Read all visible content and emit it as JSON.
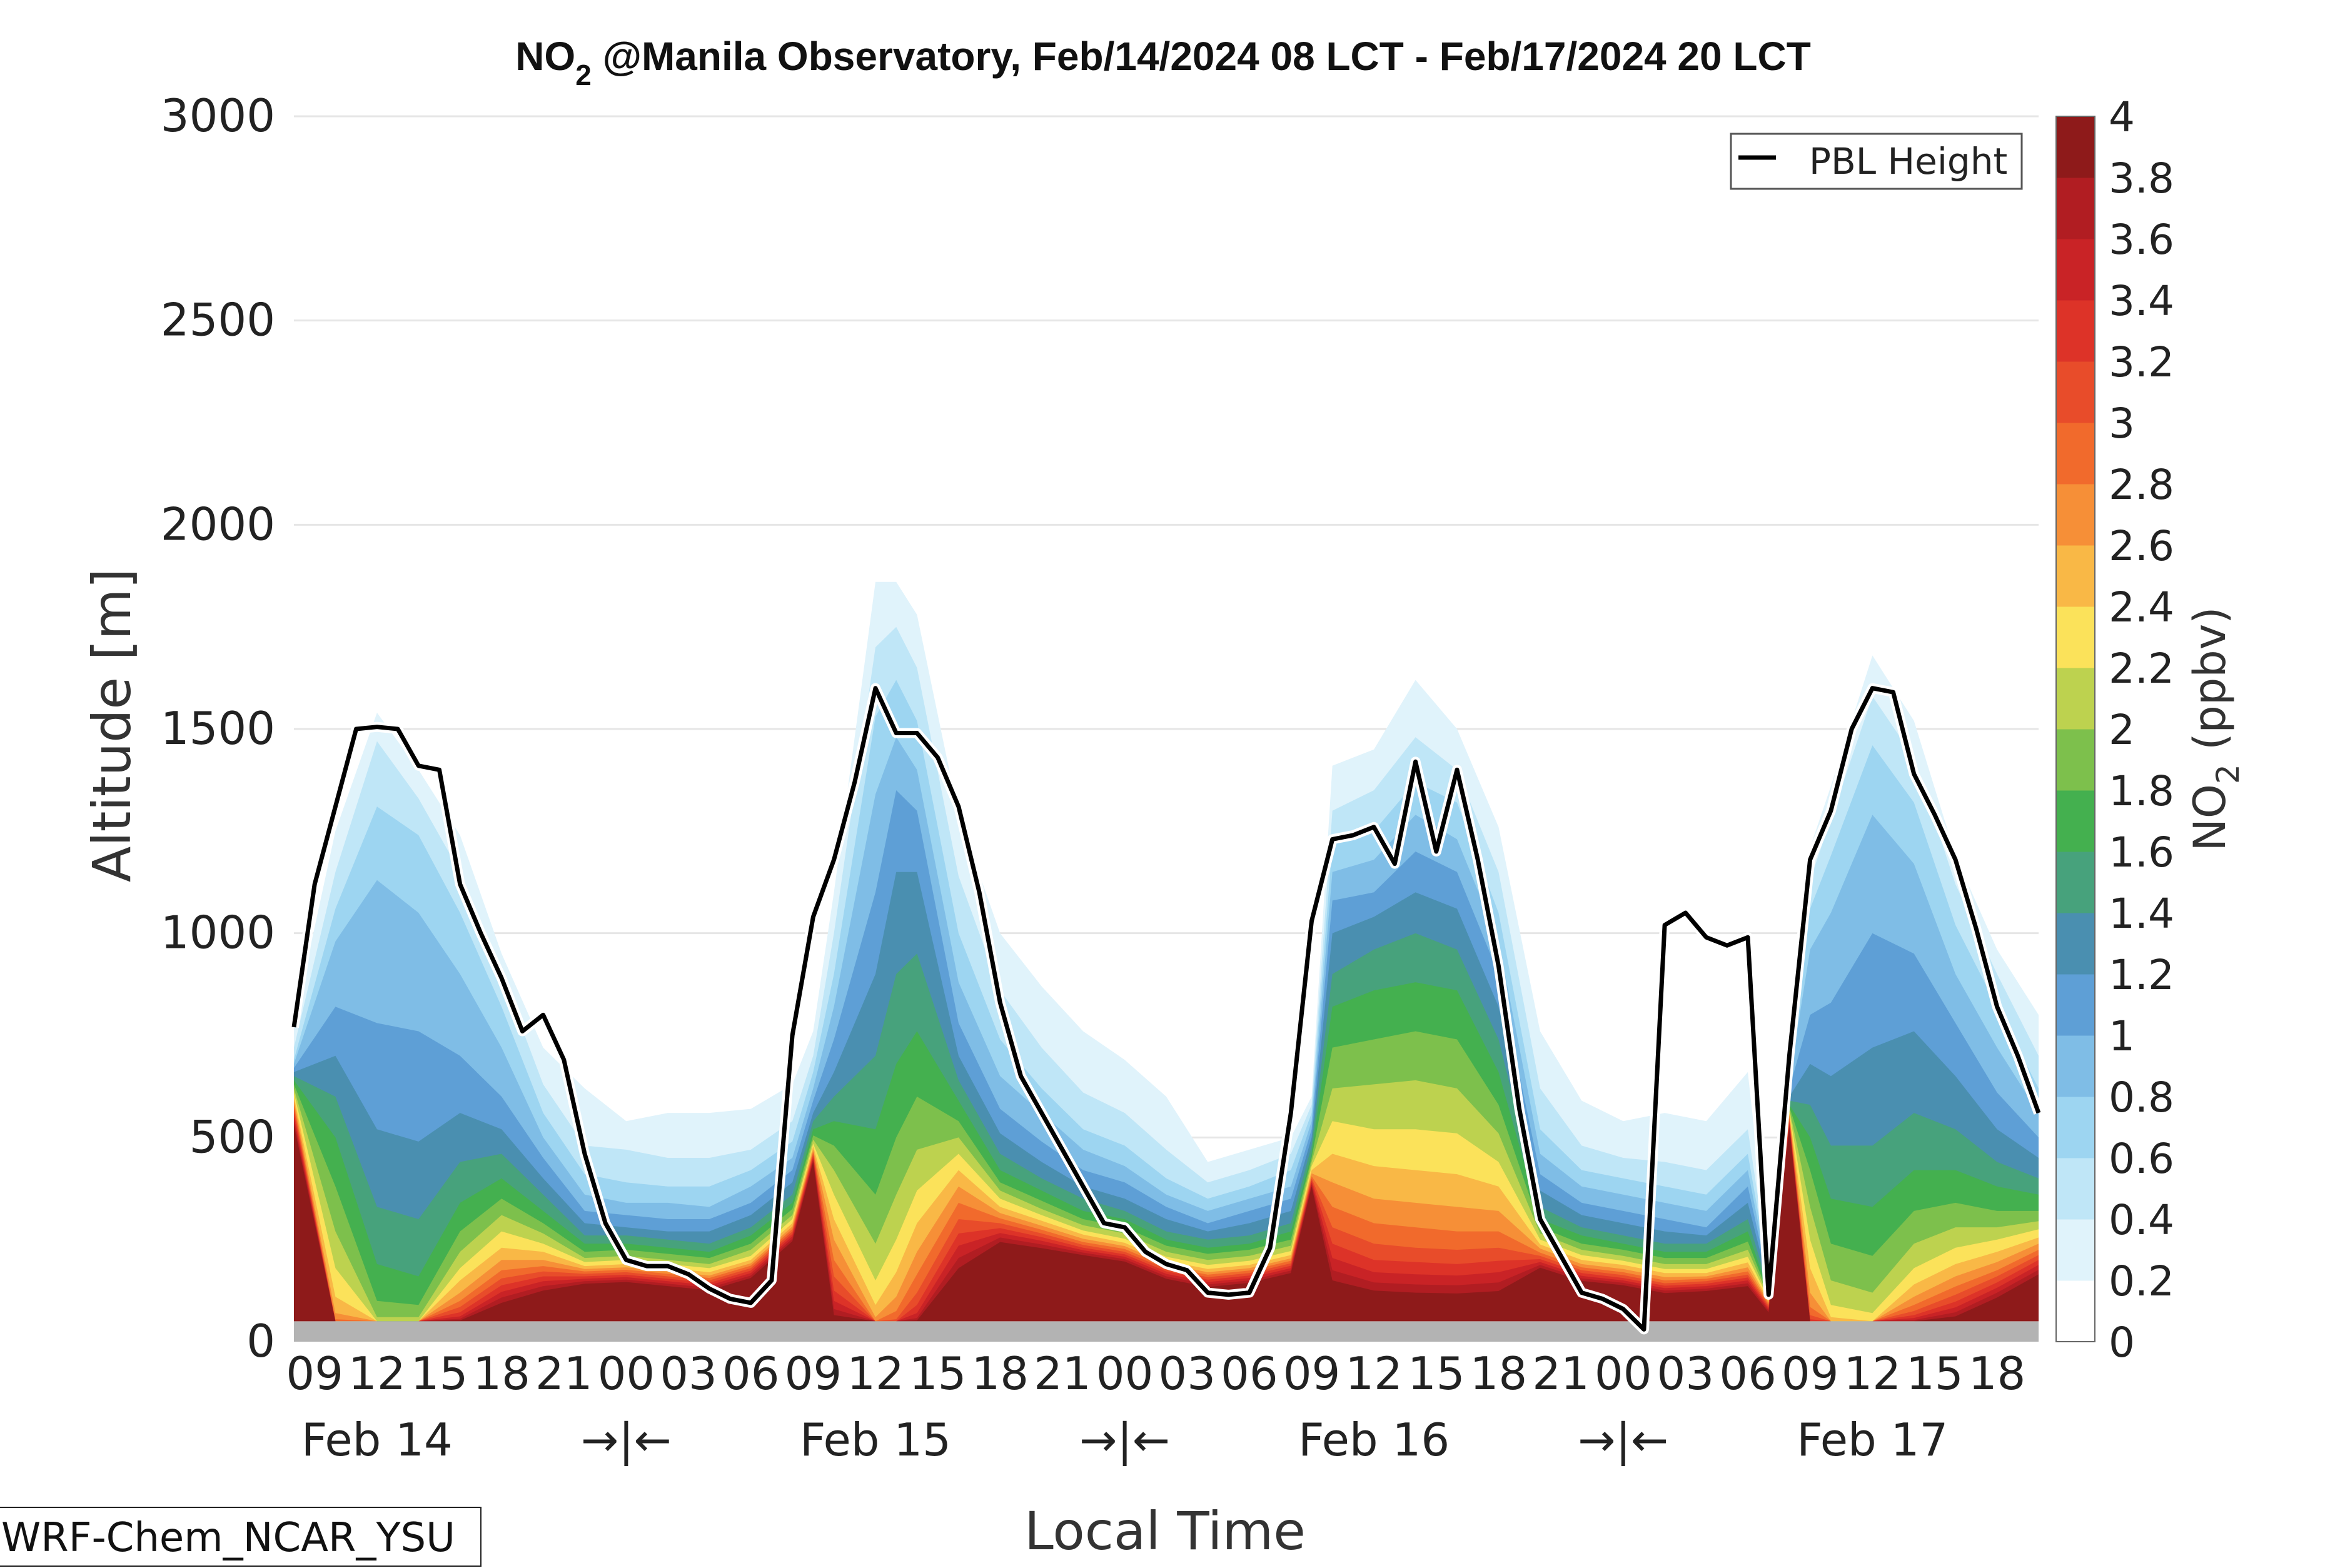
{
  "chart_data": {
    "type": "heatmap",
    "title": {
      "species": "NO",
      "subscript": "2",
      "rest": " @Manila Observatory, Feb/14/2024 08 LCT - Feb/17/2024 20 LCT"
    },
    "xlabel": "Local Time",
    "ylabel": "Altitude [m]",
    "ylim": [
      0,
      3000
    ],
    "y_ticks": [
      "0",
      "500",
      "1000",
      "1500",
      "2000",
      "2500",
      "3000"
    ],
    "x_range_hours": [
      8,
      92
    ],
    "x_tick_labels": [
      {
        "h": 9,
        "label": "09"
      },
      {
        "h": 12,
        "label": "12"
      },
      {
        "h": 15,
        "label": "15"
      },
      {
        "h": 18,
        "label": "18"
      },
      {
        "h": 21,
        "label": "21"
      },
      {
        "h": 24,
        "label": "00"
      },
      {
        "h": 27,
        "label": "03"
      },
      {
        "h": 30,
        "label": "06"
      },
      {
        "h": 33,
        "label": "09"
      },
      {
        "h": 36,
        "label": "12"
      },
      {
        "h": 39,
        "label": "15"
      },
      {
        "h": 42,
        "label": "18"
      },
      {
        "h": 45,
        "label": "21"
      },
      {
        "h": 48,
        "label": "00"
      },
      {
        "h": 51,
        "label": "03"
      },
      {
        "h": 54,
        "label": "06"
      },
      {
        "h": 57,
        "label": "09"
      },
      {
        "h": 60,
        "label": "12"
      },
      {
        "h": 63,
        "label": "15"
      },
      {
        "h": 66,
        "label": "18"
      },
      {
        "h": 69,
        "label": "21"
      },
      {
        "h": 72,
        "label": "00"
      },
      {
        "h": 75,
        "label": "03"
      },
      {
        "h": 78,
        "label": "06"
      },
      {
        "h": 81,
        "label": "09"
      },
      {
        "h": 84,
        "label": "12"
      },
      {
        "h": 87,
        "label": "15"
      },
      {
        "h": 90,
        "label": "18"
      }
    ],
    "day_labels": [
      {
        "h": 12,
        "label": "Feb 14"
      },
      {
        "h": 24,
        "label": "→|←"
      },
      {
        "h": 36,
        "label": "Feb 15"
      },
      {
        "h": 48,
        "label": "→|←"
      },
      {
        "h": 60,
        "label": "Feb 16"
      },
      {
        "h": 72,
        "label": "→|←"
      },
      {
        "h": 84,
        "label": "Feb 17"
      }
    ],
    "colorbar": {
      "label": {
        "species": "NO",
        "subscript": "2",
        "rest": " (ppbv)"
      },
      "levels": [
        0,
        0.2,
        0.4,
        0.6,
        0.8,
        1.0,
        1.2,
        1.4,
        1.6,
        1.8,
        2.0,
        2.2,
        2.4,
        2.6,
        2.8,
        3.0,
        3.2,
        3.4,
        3.6,
        3.8,
        4.0
      ],
      "tick_labels": [
        "0",
        "0.2",
        "0.4",
        "0.6",
        "0.8",
        "1",
        "1.2",
        "1.4",
        "1.6",
        "1.8",
        "2",
        "2.2",
        "2.4",
        "2.6",
        "2.8",
        "3",
        "3.2",
        "3.4",
        "3.6",
        "3.8",
        "4"
      ],
      "colors": [
        "#ffffff",
        "#e0f3fb",
        "#bfe6f7",
        "#9dd5f1",
        "#7fbde6",
        "#5e9fd6",
        "#4a8fb0",
        "#47a27c",
        "#44b04f",
        "#7dc04c",
        "#bdd24f",
        "#fbe25a",
        "#f9b846",
        "#f68f37",
        "#f16a2c",
        "#e84c2a",
        "#dd3328",
        "#c92326",
        "#b11d22",
        "#8e1a1a"
      ]
    },
    "legend": {
      "label": "PBL Height",
      "placement": "top-right"
    },
    "ground_level_m": 50,
    "pbl_height": {
      "hours": [
        8,
        9,
        10,
        11,
        12,
        13,
        14,
        15,
        16,
        17,
        18,
        19,
        20,
        21,
        22,
        23,
        24,
        25,
        26,
        27,
        28,
        29,
        30,
        31,
        32,
        33,
        34,
        35,
        36,
        37,
        38,
        39,
        40,
        41,
        42,
        43,
        44,
        45,
        46,
        47,
        48,
        49,
        50,
        51,
        52,
        53,
        54,
        55,
        56,
        57,
        58,
        59,
        60,
        61,
        62,
        63,
        64,
        65,
        66,
        67,
        68,
        69,
        70,
        71,
        72,
        73,
        74,
        75,
        76,
        77,
        78,
        79,
        80,
        81,
        82,
        83,
        84,
        85,
        86,
        87,
        88,
        89,
        90,
        91,
        92
      ],
      "values": [
        770,
        1120,
        1310,
        1500,
        1505,
        1500,
        1410,
        1400,
        1120,
        1000,
        890,
        760,
        800,
        690,
        460,
        290,
        200,
        185,
        185,
        165,
        130,
        105,
        95,
        150,
        750,
        1040,
        1180,
        1370,
        1600,
        1490,
        1490,
        1430,
        1310,
        1100,
        830,
        650,
        560,
        470,
        380,
        290,
        280,
        220,
        190,
        175,
        120,
        115,
        120,
        230,
        560,
        1030,
        1230,
        1240,
        1260,
        1170,
        1420,
        1200,
        1400,
        1180,
        920,
        570,
        300,
        210,
        120,
        105,
        80,
        30,
        1020,
        1050,
        990,
        970,
        990,
        115,
        700,
        1180,
        1300,
        1500,
        1600,
        1590,
        1390,
        1290,
        1180,
        1010,
        820,
        700,
        560
      ]
    },
    "contour_envelopes_m": {
      "hours": [
        8,
        10,
        12,
        14,
        16,
        18,
        20,
        22,
        24,
        26,
        28,
        30,
        32,
        33,
        34,
        36,
        37,
        38,
        40,
        42,
        44,
        46,
        48,
        50,
        52,
        54,
        56,
        57,
        58,
        60,
        62,
        64,
        66,
        68,
        70,
        72,
        74,
        76,
        78,
        79,
        80,
        81,
        82,
        84,
        86,
        88,
        90,
        92
      ],
      "lev_0_2": [
        780,
        1250,
        1540,
        1400,
        1240,
        950,
        720,
        620,
        540,
        560,
        560,
        570,
        630,
        760,
        1100,
        1860,
        1860,
        1780,
        1290,
        1000,
        870,
        760,
        690,
        600,
        440,
        470,
        500,
        600,
        1410,
        1450,
        1620,
        1500,
        1260,
        760,
        590,
        540,
        560,
        540,
        660,
        200,
        760,
        1210,
        1360,
        1680,
        1520,
        1190,
        960,
        800
      ],
      "lev_0_4": [
        720,
        1150,
        1470,
        1330,
        1150,
        900,
        630,
        480,
        470,
        450,
        450,
        470,
        540,
        700,
        1000,
        1700,
        1750,
        1650,
        1140,
        860,
        720,
        610,
        560,
        470,
        390,
        420,
        460,
        580,
        1300,
        1350,
        1480,
        1400,
        1150,
        620,
        480,
        450,
        440,
        420,
        520,
        180,
        700,
        1130,
        1280,
        1580,
        1430,
        1120,
        900,
        700
      ],
      "lev_0_6": [
        690,
        1060,
        1310,
        1240,
        1050,
        820,
        560,
        410,
        390,
        380,
        380,
        420,
        490,
        660,
        900,
        1530,
        1620,
        1520,
        1000,
        740,
        620,
        520,
        480,
        400,
        350,
        380,
        420,
        560,
        1220,
        1250,
        1370,
        1320,
        1050,
        520,
        420,
        400,
        380,
        360,
        460,
        170,
        660,
        1060,
        1190,
        1460,
        1320,
        1020,
        820,
        620
      ],
      "lev_0_8": [
        680,
        980,
        1130,
        1050,
        900,
        720,
        500,
        360,
        340,
        340,
        330,
        380,
        450,
        620,
        820,
        1340,
        1480,
        1400,
        880,
        650,
        560,
        470,
        430,
        360,
        320,
        350,
        380,
        540,
        1150,
        1180,
        1290,
        1230,
        980,
        460,
        380,
        360,
        340,
        320,
        420,
        160,
        640,
        960,
        1050,
        1290,
        1170,
        900,
        720,
        560
      ],
      "lev_1_0": [
        670,
        820,
        780,
        760,
        700,
        600,
        450,
        320,
        310,
        300,
        300,
        340,
        420,
        590,
        740,
        1100,
        1350,
        1300,
        780,
        570,
        490,
        420,
        390,
        330,
        290,
        320,
        350,
        520,
        1080,
        1100,
        1200,
        1150,
        900,
        410,
        340,
        320,
        300,
        280,
        380,
        150,
        620,
        800,
        830,
        1000,
        950,
        780,
        610,
        500
      ],
      "lev_1_2": [
        660,
        700,
        520,
        490,
        560,
        520,
        400,
        290,
        280,
        270,
        270,
        310,
        390,
        560,
        660,
        900,
        1150,
        1150,
        700,
        510,
        440,
        380,
        350,
        300,
        270,
        290,
        320,
        500,
        1000,
        1040,
        1100,
        1060,
        820,
        370,
        310,
        290,
        270,
        260,
        340,
        140,
        600,
        680,
        650,
        720,
        760,
        650,
        520,
        450
      ],
      "lev_1_4": [
        650,
        600,
        330,
        300,
        440,
        460,
        360,
        260,
        260,
        250,
        240,
        280,
        360,
        540,
        600,
        700,
        900,
        950,
        640,
        460,
        400,
        350,
        320,
        270,
        250,
        260,
        290,
        480,
        900,
        960,
        1000,
        960,
        740,
        330,
        280,
        260,
        240,
        240,
        300,
        130,
        590,
        580,
        480,
        480,
        560,
        520,
        440,
        400
      ],
      "lev_1_6": [
        640,
        500,
        190,
        160,
        340,
        400,
        320,
        240,
        240,
        230,
        220,
        260,
        340,
        520,
        540,
        520,
        680,
        760,
        590,
        420,
        370,
        320,
        300,
        250,
        230,
        240,
        270,
        460,
        820,
        860,
        880,
        860,
        660,
        300,
        260,
        240,
        220,
        220,
        270,
        120,
        580,
        500,
        350,
        330,
        420,
        420,
        380,
        360
      ],
      "lev_1_8": [
        630,
        380,
        100,
        90,
        270,
        350,
        290,
        220,
        225,
        215,
        205,
        240,
        325,
        505,
        480,
        360,
        500,
        600,
        540,
        390,
        345,
        300,
        280,
        235,
        215,
        225,
        250,
        450,
        720,
        740,
        760,
        740,
        580,
        280,
        240,
        225,
        205,
        205,
        245,
        115,
        575,
        420,
        240,
        210,
        320,
        340,
        320,
        320
      ],
      "lev_2_0": [
        620,
        270,
        60,
        60,
        220,
        310,
        265,
        205,
        210,
        200,
        190,
        225,
        310,
        495,
        420,
        240,
        360,
        470,
        500,
        370,
        325,
        285,
        265,
        220,
        200,
        210,
        235,
        440,
        620,
        630,
        640,
        620,
        510,
        265,
        225,
        210,
        190,
        190,
        225,
        110,
        570,
        330,
        150,
        120,
        240,
        280,
        280,
        295
      ],
      "lev_2_2": [
        610,
        180,
        50,
        50,
        180,
        270,
        240,
        195,
        200,
        190,
        180,
        210,
        300,
        485,
        360,
        150,
        250,
        370,
        460,
        350,
        310,
        272,
        252,
        208,
        188,
        198,
        222,
        430,
        540,
        520,
        520,
        510,
        440,
        250,
        212,
        198,
        178,
        178,
        208,
        105,
        565,
        250,
        90,
        70,
        180,
        230,
        250,
        275
      ],
      "lev_2_4": [
        600,
        110,
        50,
        50,
        150,
        230,
        220,
        185,
        190,
        180,
        170,
        200,
        290,
        478,
        300,
        90,
        170,
        290,
        420,
        330,
        296,
        262,
        242,
        198,
        178,
        188,
        212,
        420,
        460,
        430,
        420,
        410,
        380,
        238,
        200,
        188,
        168,
        168,
        194,
        100,
        560,
        180,
        60,
        50,
        140,
        190,
        220,
        255
      ],
      "lev_2_6": [
        590,
        70,
        50,
        50,
        120,
        200,
        200,
        178,
        182,
        172,
        162,
        192,
        282,
        470,
        250,
        60,
        110,
        220,
        380,
        315,
        284,
        252,
        234,
        190,
        170,
        180,
        204,
        412,
        390,
        350,
        340,
        330,
        320,
        228,
        190,
        178,
        158,
        160,
        182,
        96,
        555,
        120,
        50,
        50,
        110,
        160,
        195,
        240
      ],
      "lev_2_8": [
        580,
        55,
        50,
        50,
        100,
        175,
        185,
        172,
        176,
        166,
        156,
        186,
        276,
        465,
        200,
        50,
        75,
        165,
        340,
        302,
        274,
        244,
        227,
        184,
        164,
        174,
        198,
        405,
        330,
        290,
        280,
        270,
        270,
        218,
        182,
        170,
        150,
        154,
        172,
        92,
        550,
        85,
        50,
        50,
        90,
        135,
        175,
        225
      ],
      "lev_3_0": [
        570,
        50,
        50,
        50,
        85,
        155,
        172,
        166,
        170,
        160,
        150,
        180,
        270,
        460,
        160,
        50,
        55,
        120,
        300,
        290,
        265,
        237,
        220,
        178,
        158,
        168,
        192,
        400,
        280,
        240,
        230,
        225,
        230,
        210,
        175,
        163,
        143,
        148,
        164,
        88,
        545,
        65,
        50,
        50,
        75,
        115,
        160,
        212
      ],
      "lev_3_2": [
        560,
        50,
        50,
        50,
        72,
        138,
        160,
        160,
        164,
        154,
        144,
        174,
        264,
        455,
        125,
        50,
        50,
        90,
        265,
        278,
        256,
        230,
        214,
        172,
        152,
        162,
        186,
        395,
        240,
        200,
        195,
        190,
        198,
        202,
        168,
        156,
        137,
        142,
        157,
        84,
        540,
        55,
        50,
        50,
        65,
        98,
        145,
        200
      ],
      "lev_3_4": [
        550,
        50,
        50,
        50,
        62,
        122,
        148,
        154,
        158,
        148,
        138,
        168,
        258,
        450,
        100,
        50,
        50,
        70,
        235,
        266,
        247,
        224,
        208,
        166,
        146,
        156,
        180,
        390,
        205,
        170,
        165,
        162,
        170,
        195,
        161,
        150,
        131,
        136,
        150,
        80,
        535,
        50,
        50,
        50,
        58,
        84,
        132,
        188
      ],
      "lev_3_6": [
        540,
        50,
        50,
        50,
        56,
        108,
        136,
        148,
        152,
        142,
        132,
        162,
        252,
        445,
        80,
        50,
        50,
        58,
        205,
        255,
        238,
        218,
        202,
        160,
        140,
        150,
        174,
        385,
        175,
        145,
        140,
        138,
        145,
        188,
        155,
        144,
        125,
        130,
        143,
        76,
        530,
        50,
        50,
        50,
        53,
        72,
        120,
        176
      ],
      "lev_3_8": [
        530,
        50,
        50,
        50,
        52,
        95,
        125,
        142,
        146,
        136,
        126,
        156,
        246,
        440,
        65,
        50,
        50,
        52,
        180,
        244,
        229,
        212,
        196,
        154,
        134,
        144,
        168,
        380,
        150,
        125,
        120,
        118,
        124,
        181,
        149,
        138,
        119,
        124,
        136,
        72,
        525,
        50,
        50,
        50,
        50,
        62,
        108,
        165
      ]
    }
  },
  "model_tag": "WRF-Chem_NCAR_YSU"
}
